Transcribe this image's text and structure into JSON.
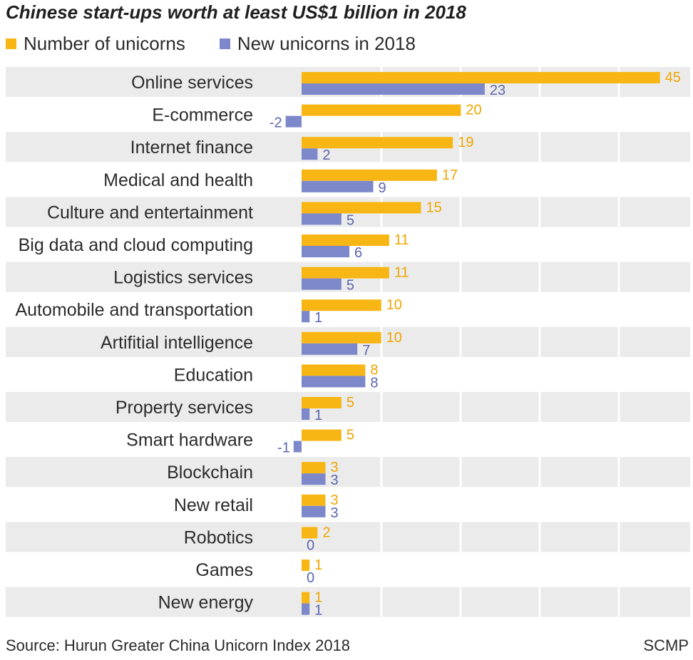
{
  "title": "Chinese start-ups worth at least US$1 billion in 2018",
  "legend": [
    {
      "label": "Number of unicorns",
      "color": "#f8b614"
    },
    {
      "label": "New unicorns in 2018",
      "color": "#7c88c9"
    }
  ],
  "source": "Source: Hurun Greater China Unicorn Index 2018",
  "credit": "SCMP",
  "chart_data": {
    "type": "bar",
    "orientation": "horizontal",
    "categories": [
      "Online services",
      "E-commerce",
      "Internet finance",
      "Medical and health",
      "Culture and entertainment",
      "Big data and cloud computing",
      "Logistics services",
      "Automobile and transportation",
      "Artifitial intelligence",
      "Education",
      "Property services",
      "Smart hardware",
      "Blockchain",
      "New retail",
      "Robotics",
      "Games",
      "New energy"
    ],
    "series": [
      {
        "name": "Number of unicorns",
        "color": "#f8b614",
        "values": [
          45,
          20,
          19,
          17,
          15,
          11,
          11,
          10,
          10,
          8,
          5,
          5,
          3,
          3,
          2,
          1,
          1
        ]
      },
      {
        "name": "New unicorns in 2018",
        "color": "#7c88c9",
        "values": [
          23,
          -2,
          2,
          9,
          5,
          6,
          5,
          1,
          7,
          8,
          1,
          -1,
          3,
          3,
          0,
          0,
          1
        ]
      }
    ],
    "xlim": [
      -2,
      49
    ],
    "grid": true,
    "row_banding": true,
    "legend_position": "top-left"
  }
}
